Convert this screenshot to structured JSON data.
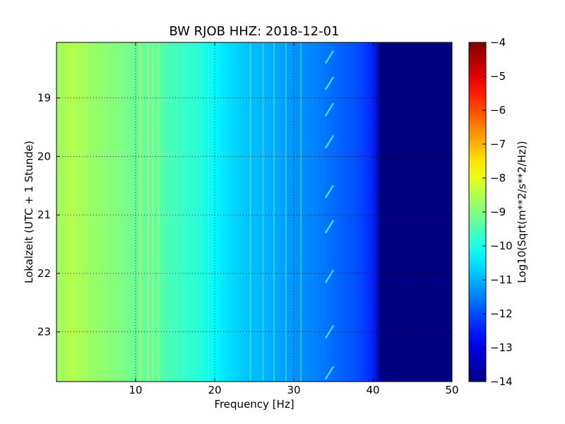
{
  "chart_data": {
    "type": "heatmap",
    "title": "BW RJOB HHZ: 2018-12-01",
    "xlabel": "Frequency [Hz]",
    "ylabel": "Lokalzeit (UTC + 1 Stunde)",
    "xlim": [
      0,
      50
    ],
    "ylim_hours": [
      18.05,
      23.85
    ],
    "y_inverted": true,
    "x_ticks": [
      10,
      20,
      30,
      40,
      50
    ],
    "x_tick_labels": [
      "10",
      "20",
      "30",
      "40",
      "50"
    ],
    "y_ticks": [
      19,
      20,
      21,
      22,
      23
    ],
    "y_tick_labels": [
      "19",
      "20",
      "21",
      "22",
      "23"
    ],
    "grid": true,
    "colormap": "jet",
    "colorbar": {
      "label": "Log10(Sqrt(m**2/s**2/Hz))",
      "range": [
        -14,
        -4
      ],
      "ticks": [
        -4,
        -5,
        -6,
        -7,
        -8,
        -9,
        -10,
        -11,
        -12,
        -13,
        -14
      ],
      "tick_labels": [
        "−4",
        "−5",
        "−6",
        "−7",
        "−8",
        "−9",
        "−10",
        "−11",
        "−12",
        "−13",
        "−14"
      ]
    },
    "spectrum_profile": {
      "frequency_hz": [
        0,
        2,
        5,
        8,
        10,
        12,
        15,
        18,
        20,
        22,
        25,
        28,
        30,
        33,
        35,
        38,
        40,
        41,
        45,
        50
      ],
      "level": [
        -8.7,
        -8.5,
        -8.8,
        -9.0,
        -9.2,
        -9.3,
        -9.6,
        -9.9,
        -10.3,
        -10.6,
        -10.9,
        -11.1,
        -11.3,
        -11.5,
        -11.7,
        -12.0,
        -12.4,
        -14.0,
        -14.0,
        -14.0
      ]
    },
    "persistent_lines_hz": [
      10.6,
      11.6,
      12.2,
      12.9,
      18.3,
      19.2,
      24.5,
      26.1,
      27.5,
      29.0,
      30.9
    ],
    "recurring_feature": {
      "frequency_range_hz": [
        34.0,
        35.0
      ],
      "times_hours": [
        18.3,
        18.75,
        19.2,
        19.75,
        20.6,
        21.2,
        22.05,
        23.0,
        23.7
      ]
    }
  }
}
